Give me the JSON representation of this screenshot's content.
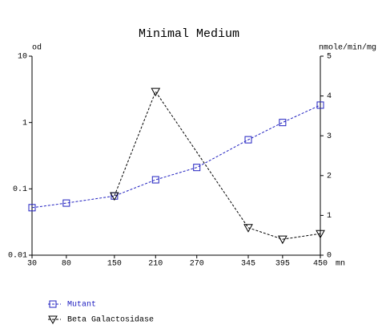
{
  "chart_data": {
    "type": "line",
    "title": "Minimal Medium",
    "x_label": "mn",
    "y_label": "od",
    "y2_label": "nmole/min/mg",
    "xlim": [
      30,
      450
    ],
    "xticks": [
      30,
      80,
      150,
      210,
      270,
      345,
      395,
      450
    ],
    "ylim": [
      0.01,
      10
    ],
    "yticks": [
      0.01,
      0.1,
      1,
      10
    ],
    "ylog": true,
    "y2lim": [
      0,
      5
    ],
    "y2ticks": [
      0,
      1,
      2,
      3,
      4,
      5
    ],
    "series": [
      {
        "name": "Mutant",
        "color": "#2020c0",
        "marker": "square",
        "axis": "y",
        "x": [
          30,
          80,
          150,
          210,
          270,
          345,
          395,
          450
        ],
        "values": [
          0.052,
          0.061,
          0.078,
          0.137,
          0.21,
          0.55,
          1.0,
          1.83
        ]
      },
      {
        "name": "Beta Galactosidase",
        "color": "#000000",
        "marker": "triangle-down",
        "axis": "y2",
        "x": [
          150,
          210,
          345,
          395,
          450
        ],
        "values": [
          1.49,
          4.11,
          0.69,
          0.4,
          0.54
        ]
      }
    ]
  }
}
